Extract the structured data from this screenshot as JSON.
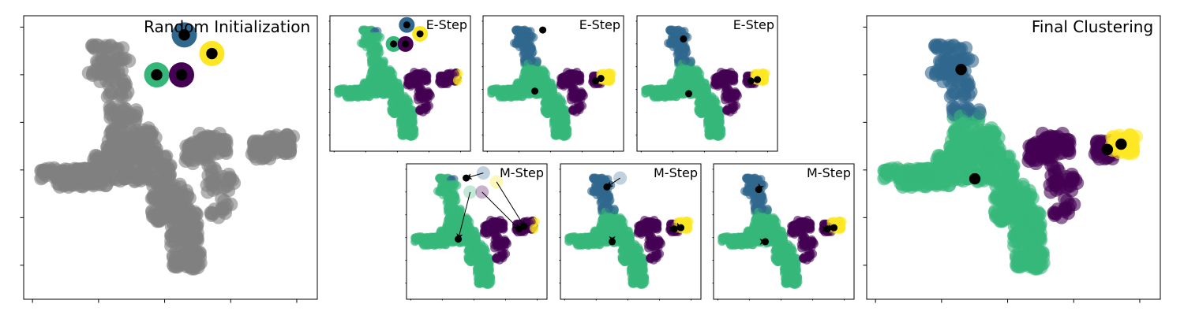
{
  "colors": {
    "gray": "#808080",
    "green": "#35b779",
    "blue": "#31688e",
    "purple": "#440154",
    "yellow": "#fde725",
    "centroid": "#000000",
    "frame": "#000000"
  },
  "chart_data": {
    "type": "scatter",
    "description_of_method": "",
    "panels": [
      {
        "id": "random-init",
        "title": "Random Initialization",
        "colored": false,
        "centroid_style": "ring",
        "centroids": [
          {
            "x": 0.55,
            "y": 0.96,
            "color": "blue"
          },
          {
            "x": 0.65,
            "y": 0.89,
            "color": "yellow"
          },
          {
            "x": 0.45,
            "y": 0.81,
            "color": "green"
          },
          {
            "x": 0.54,
            "y": 0.81,
            "color": "purple"
          }
        ]
      },
      {
        "id": "e-step-1",
        "title": "E-Step",
        "colored": true,
        "centroid_style": "ring",
        "assignment": "init",
        "centroids": [
          {
            "x": 0.55,
            "y": 0.96,
            "color": "blue"
          },
          {
            "x": 0.65,
            "y": 0.89,
            "color": "yellow"
          },
          {
            "x": 0.45,
            "y": 0.81,
            "color": "green"
          },
          {
            "x": 0.54,
            "y": 0.81,
            "color": "purple"
          }
        ]
      },
      {
        "id": "e-step-2",
        "title": "E-Step",
        "colored": true,
        "centroid_style": "dot",
        "assignment": "final",
        "centroids": [
          {
            "x": 0.42,
            "y": 0.92,
            "color": "blue"
          },
          {
            "x": 0.86,
            "y": 0.54,
            "color": "yellow"
          },
          {
            "x": 0.36,
            "y": 0.44,
            "color": "green"
          },
          {
            "x": 0.82,
            "y": 0.52,
            "color": "purple"
          }
        ]
      },
      {
        "id": "e-step-3",
        "title": "E-Step",
        "colored": true,
        "centroid_style": "dot",
        "assignment": "final",
        "centroids": [
          {
            "x": 0.32,
            "y": 0.85,
            "color": "blue"
          },
          {
            "x": 0.88,
            "y": 0.53,
            "color": "yellow"
          },
          {
            "x": 0.36,
            "y": 0.42,
            "color": "green"
          },
          {
            "x": 0.83,
            "y": 0.52,
            "color": "purple"
          }
        ]
      },
      {
        "id": "m-step-1",
        "title": "M-Step",
        "colored": true,
        "centroid_style": "arrow",
        "assignment": "init",
        "centroids_from": [
          {
            "x": 0.55,
            "y": 0.96,
            "color": "blue"
          },
          {
            "x": 0.65,
            "y": 0.89,
            "color": "yellow"
          },
          {
            "x": 0.45,
            "y": 0.81,
            "color": "green"
          },
          {
            "x": 0.54,
            "y": 0.81,
            "color": "purple"
          }
        ],
        "centroids": [
          {
            "x": 0.42,
            "y": 0.92,
            "color": "blue"
          },
          {
            "x": 0.86,
            "y": 0.54,
            "color": "yellow"
          },
          {
            "x": 0.36,
            "y": 0.44,
            "color": "green"
          },
          {
            "x": 0.82,
            "y": 0.52,
            "color": "purple"
          }
        ]
      },
      {
        "id": "m-step-2",
        "title": "M-Step",
        "colored": true,
        "centroid_style": "arrow",
        "assignment": "final",
        "centroids_from": [
          {
            "x": 0.42,
            "y": 0.92,
            "color": "blue"
          },
          {
            "x": 0.86,
            "y": 0.54,
            "color": "yellow"
          },
          {
            "x": 0.36,
            "y": 0.44,
            "color": "green"
          },
          {
            "x": 0.82,
            "y": 0.52,
            "color": "purple"
          }
        ],
        "centroids": [
          {
            "x": 0.32,
            "y": 0.85,
            "color": "blue"
          },
          {
            "x": 0.88,
            "y": 0.53,
            "color": "yellow"
          },
          {
            "x": 0.36,
            "y": 0.42,
            "color": "green"
          },
          {
            "x": 0.83,
            "y": 0.52,
            "color": "purple"
          }
        ]
      },
      {
        "id": "m-step-3",
        "title": "M-Step",
        "colored": true,
        "centroid_style": "arrow",
        "assignment": "final",
        "centroids_from": [
          {
            "x": 0.32,
            "y": 0.85,
            "color": "blue"
          },
          {
            "x": 0.88,
            "y": 0.53,
            "color": "yellow"
          },
          {
            "x": 0.36,
            "y": 0.42,
            "color": "green"
          },
          {
            "x": 0.83,
            "y": 0.52,
            "color": "purple"
          }
        ],
        "centroids": [
          {
            "x": 0.31,
            "y": 0.83,
            "color": "blue"
          },
          {
            "x": 0.88,
            "y": 0.53,
            "color": "yellow"
          },
          {
            "x": 0.36,
            "y": 0.42,
            "color": "green"
          },
          {
            "x": 0.83,
            "y": 0.52,
            "color": "purple"
          }
        ]
      },
      {
        "id": "final-clustering",
        "title": "Final Clustering",
        "colored": true,
        "centroid_style": "dot",
        "assignment": "final",
        "centroids": [
          {
            "x": 0.31,
            "y": 0.83,
            "color": "blue"
          },
          {
            "x": 0.89,
            "y": 0.55,
            "color": "yellow"
          },
          {
            "x": 0.36,
            "y": 0.42,
            "color": "green"
          },
          {
            "x": 0.84,
            "y": 0.53,
            "color": "purple"
          }
        ]
      }
    ],
    "grid": false,
    "tick_labels_shown": false
  }
}
